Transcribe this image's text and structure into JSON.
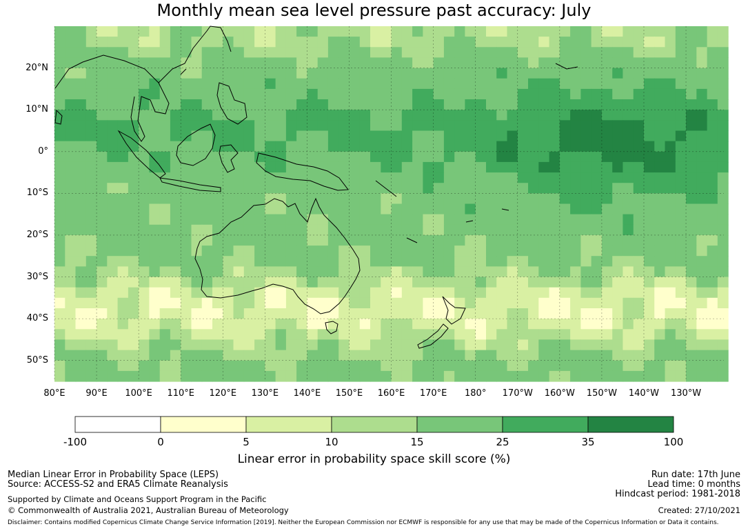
{
  "title": "Monthly mean sea level pressure past accuracy: July",
  "map": {
    "lat_labels": [
      "20°N",
      "10°N",
      "0°",
      "10°S",
      "20°S",
      "30°S",
      "40°S",
      "50°S"
    ],
    "lat_values": [
      20,
      10,
      0,
      -10,
      -20,
      -30,
      -40,
      -50
    ],
    "lon_labels": [
      "80°E",
      "90°E",
      "100°E",
      "110°E",
      "120°E",
      "130°E",
      "140°E",
      "150°E",
      "160°E",
      "170°E",
      "180°",
      "170°W",
      "160°W",
      "150°W",
      "140°W",
      "130°W"
    ],
    "lon_values": [
      80,
      90,
      100,
      110,
      120,
      130,
      140,
      150,
      160,
      170,
      180,
      190,
      200,
      210,
      220,
      230
    ],
    "lon_range": [
      80,
      239
    ],
    "lat_range": [
      -55,
      30
    ],
    "colors": [
      "#ffffff",
      "#ffffcc",
      "#d9f0a3",
      "#addd8e",
      "#78c679",
      "#41ab5d",
      "#238443"
    ]
  },
  "colorbar": {
    "tick_labels": [
      "-100",
      "0",
      "5",
      "10",
      "15",
      "25",
      "35",
      "100"
    ],
    "label": "Linear error in probability space skill score (%)"
  },
  "footer": {
    "line1": "Median Linear Error in Probability Space (LEPS)",
    "line2": "Source: ACCESS-S2 and ERA5 Climate Reanalysis",
    "line3": "Supported by Climate and Oceans Support Program in the Pacific",
    "line4": "© Commonwealth of Australia 2021, Australian Bureau of Meteorology",
    "run_date": "Run date: 17th June",
    "lead_time": "Lead time: 0 months",
    "hindcast": "Hindcast period: 1981-2018",
    "created": "Created: 27/10/2021",
    "disclaimer": "Disclaimer: Contains modified Copernicus Climate Change Service Information [2019]. Neither the European Commission nor ECMWF is responsible for any use that may be made of the Copernicus Information or Data it contains."
  }
}
